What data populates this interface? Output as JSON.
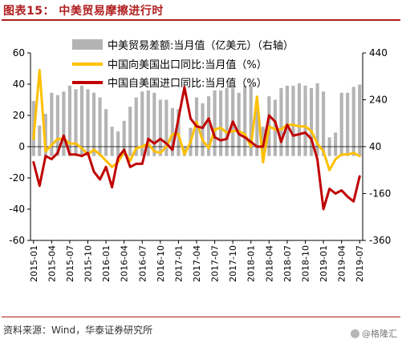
{
  "figure": {
    "title": "图表15：  中美贸易摩擦进行时",
    "source": "资料来源：Wind，华泰证券研究所",
    "watermark": "@格隆汇"
  },
  "chart_data": {
    "type": "bar+line",
    "categories": [
      "2015-01",
      "2015-02",
      "2015-03",
      "2015-04",
      "2015-05",
      "2015-06",
      "2015-07",
      "2015-08",
      "2015-09",
      "2015-10",
      "2015-11",
      "2015-12",
      "2016-01",
      "2016-02",
      "2016-03",
      "2016-04",
      "2016-05",
      "2016-06",
      "2016-07",
      "2016-08",
      "2016-09",
      "2016-10",
      "2016-11",
      "2016-12",
      "2017-01",
      "2017-02",
      "2017-03",
      "2017-04",
      "2017-05",
      "2017-06",
      "2017-07",
      "2017-08",
      "2017-09",
      "2017-10",
      "2017-11",
      "2017-12",
      "2018-01",
      "2018-02",
      "2018-03",
      "2018-04",
      "2018-05",
      "2018-06",
      "2018-07",
      "2018-08",
      "2018-09",
      "2018-10",
      "2018-11",
      "2018-12",
      "2019-01",
      "2019-02",
      "2019-03",
      "2019-04",
      "2019-05",
      "2019-06",
      "2019-07"
    ],
    "xtick_labels": [
      "2015-01",
      "2015-04",
      "2015-07",
      "2015-10",
      "2016-01",
      "2016-04",
      "2016-07",
      "2016-10",
      "2017-01",
      "2017-04",
      "2017-07",
      "2017-10",
      "2018-01",
      "2018-04",
      "2018-07",
      "2018-10",
      "2019-01",
      "2019-04",
      "2019-07"
    ],
    "series": [
      {
        "name": "中美贸易差额:当月值（亿美元）（右轴）",
        "type": "bar",
        "axis": "right",
        "color": "#b4b4b4",
        "values": [
          235,
          130,
          180,
          270,
          260,
          275,
          300,
          285,
          300,
          285,
          270,
          250,
          200,
          125,
          105,
          150,
          210,
          250,
          275,
          280,
          270,
          240,
          240,
          205,
          200,
          40,
          120,
          250,
          225,
          255,
          280,
          280,
          290,
          290,
          270,
          300,
          300,
          200,
          125,
          255,
          240,
          290,
          300,
          300,
          310,
          300,
          290,
          310,
          275,
          80,
          100,
          270,
          270,
          295,
          305
        ]
      },
      {
        "name": "中国向美国出口同比:当月值（%）",
        "type": "line",
        "axis": "left",
        "color": "#ffc000",
        "values": [
          5,
          49,
          -3,
          1,
          5,
          5,
          2,
          2,
          -1,
          -5,
          -2,
          -5,
          -9,
          -13,
          -10,
          -3,
          -9,
          -1,
          0,
          2,
          -3,
          -4,
          0,
          8,
          8,
          -5,
          3,
          16,
          4,
          -1,
          11,
          12,
          9,
          10,
          10,
          8,
          0,
          32,
          -10,
          13,
          11,
          11,
          14,
          14,
          13,
          13,
          10,
          2,
          -3,
          -15,
          -8,
          -5,
          -5,
          -4,
          -6
        ]
      },
      {
        "name": "中国自美国进口同比:当月值（%）",
        "type": "line",
        "axis": "left",
        "color": "#c00000",
        "values": [
          -10,
          -25,
          -6,
          -8,
          -4,
          7,
          -5,
          -5,
          -6,
          -4,
          -16,
          -21,
          -13,
          -26,
          -7,
          -2,
          -13,
          -11,
          -11,
          5,
          2,
          5,
          2,
          -2,
          18,
          38,
          18,
          13,
          12,
          18,
          6,
          4,
          5,
          16,
          8,
          6,
          3,
          0,
          0,
          20,
          16,
          3,
          14,
          7,
          8,
          9,
          5,
          -8,
          -40,
          -27,
          -30,
          -28,
          -32,
          -35,
          -19
        ]
      }
    ],
    "left_axis": {
      "ylim": [
        -60,
        60
      ],
      "ticks": [
        -60,
        -40,
        -20,
        0,
        20,
        40,
        60
      ]
    },
    "right_axis": {
      "ylim": [
        -360,
        440
      ],
      "ticks": [
        -360,
        -160,
        40,
        240,
        440
      ]
    },
    "legend_position": "top-center",
    "grid": false
  }
}
